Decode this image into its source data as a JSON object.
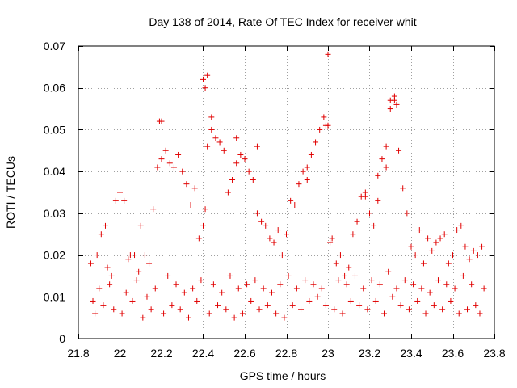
{
  "chart_data": {
    "type": "scatter",
    "title": "Day 138 of 2014, Rate Of TEC Index for receiver whit",
    "xlabel": "GPS time / hours",
    "ylabel": "ROTI / TECUs",
    "xlim": [
      21.8,
      23.8
    ],
    "ylim": [
      0,
      0.07
    ],
    "xticks": [
      21.8,
      22,
      22.2,
      22.4,
      22.6,
      22.8,
      23,
      23.2,
      23.4,
      23.6,
      23.8
    ],
    "xtick_labels": [
      "21.8",
      "22",
      "22.2",
      "22.4",
      "22.6",
      "22.8",
      "23",
      "23.2",
      "23.4",
      "23.6",
      "23.8"
    ],
    "yticks": [
      0,
      0.01,
      0.02,
      0.03,
      0.04,
      0.05,
      0.06,
      0.07
    ],
    "ytick_labels": [
      "0",
      "0.01",
      "0.02",
      "0.03",
      "0.04",
      "0.05",
      "0.06",
      "0.07"
    ],
    "grid": true,
    "marker": "+",
    "marker_color": "#e00000",
    "series": [
      {
        "name": "ROTI",
        "x": [
          21.87,
          21.89,
          21.91,
          21.93,
          21.96,
          21.98,
          22.0,
          22.02,
          22.05,
          22.07,
          22.1,
          22.12,
          22.14,
          22.16,
          22.18,
          22.2,
          22.22,
          22.24,
          22.26,
          22.28,
          22.3,
          22.32,
          22.34,
          22.36,
          22.38,
          22.4,
          22.41,
          22.42,
          22.44,
          22.46,
          22.48,
          22.5,
          22.52,
          22.54,
          22.56,
          22.58,
          22.6,
          22.62,
          22.64,
          22.66,
          22.68,
          22.7,
          22.72,
          22.74,
          22.76,
          22.78,
          22.8,
          22.82,
          22.84,
          22.86,
          22.88,
          22.9,
          22.92,
          22.94,
          22.96,
          22.98,
          23.0,
          23.01,
          23.02,
          23.04,
          23.06,
          23.08,
          23.1,
          23.12,
          23.14,
          23.16,
          23.18,
          23.2,
          23.22,
          23.24,
          23.26,
          23.28,
          23.3,
          23.32,
          23.34,
          23.36,
          23.38,
          23.4,
          23.42,
          23.44,
          23.46,
          23.48,
          23.5,
          23.52,
          23.54,
          23.56,
          23.58,
          23.6,
          23.62,
          23.64,
          23.66,
          23.68,
          23.7,
          23.72,
          23.74,
          21.88,
          21.92,
          21.97,
          22.01,
          22.06,
          22.11,
          22.15,
          22.21,
          22.25,
          22.29,
          22.33,
          22.37,
          22.43,
          22.47,
          22.51,
          22.55,
          22.59,
          22.63,
          22.67,
          22.71,
          22.75,
          22.79,
          22.83,
          22.87,
          22.91,
          22.95,
          22.99,
          23.03,
          23.07,
          23.11,
          23.15,
          23.19,
          23.23,
          23.27,
          23.31,
          23.35,
          23.39,
          23.43,
          23.47,
          23.51,
          23.55,
          23.59,
          23.63,
          23.67,
          23.71,
          23.73,
          21.9,
          21.95,
          22.03,
          22.08,
          22.13,
          22.17,
          22.23,
          22.27,
          22.31,
          22.35,
          22.39,
          22.45,
          22.49,
          22.53,
          22.57,
          22.61,
          22.65,
          22.69,
          22.73,
          22.77,
          22.81,
          22.85,
          22.89,
          22.93,
          22.97,
          23.05,
          23.09,
          23.13,
          23.17,
          23.21,
          23.25,
          23.29,
          23.33,
          23.37,
          23.41,
          23.45,
          23.49,
          23.53,
          23.57,
          23.61,
          23.65,
          23.69,
          23.75,
          21.86,
          21.94,
          22.04,
          22.09,
          22.19,
          22.42,
          22.41,
          22.44,
          22.99,
          23.0,
          23.3,
          23.32,
          23.33,
          22.2,
          22.4,
          22.56,
          22.66,
          22.9,
          23.18,
          23.24,
          23.28
        ],
        "y": [
          0.009,
          0.02,
          0.025,
          0.027,
          0.015,
          0.033,
          0.035,
          0.033,
          0.02,
          0.02,
          0.027,
          0.02,
          0.018,
          0.031,
          0.041,
          0.043,
          0.045,
          0.042,
          0.041,
          0.044,
          0.04,
          0.037,
          0.032,
          0.036,
          0.024,
          0.027,
          0.031,
          0.046,
          0.05,
          0.048,
          0.047,
          0.045,
          0.035,
          0.038,
          0.042,
          0.044,
          0.043,
          0.04,
          0.038,
          0.03,
          0.028,
          0.027,
          0.024,
          0.023,
          0.026,
          0.02,
          0.025,
          0.033,
          0.032,
          0.037,
          0.04,
          0.038,
          0.044,
          0.047,
          0.05,
          0.053,
          0.051,
          0.023,
          0.024,
          0.018,
          0.02,
          0.015,
          0.017,
          0.025,
          0.028,
          0.034,
          0.035,
          0.03,
          0.027,
          0.039,
          0.043,
          0.041,
          0.055,
          0.057,
          0.045,
          0.036,
          0.03,
          0.022,
          0.02,
          0.026,
          0.018,
          0.024,
          0.021,
          0.023,
          0.024,
          0.025,
          0.018,
          0.02,
          0.026,
          0.027,
          0.022,
          0.019,
          0.021,
          0.02,
          0.022,
          0.006,
          0.008,
          0.007,
          0.006,
          0.009,
          0.005,
          0.007,
          0.006,
          0.008,
          0.007,
          0.005,
          0.009,
          0.006,
          0.008,
          0.007,
          0.005,
          0.006,
          0.009,
          0.007,
          0.008,
          0.006,
          0.005,
          0.008,
          0.007,
          0.009,
          0.01,
          0.008,
          0.007,
          0.006,
          0.009,
          0.008,
          0.007,
          0.009,
          0.006,
          0.01,
          0.008,
          0.007,
          0.009,
          0.006,
          0.008,
          0.007,
          0.009,
          0.006,
          0.007,
          0.008,
          0.006,
          0.012,
          0.013,
          0.011,
          0.014,
          0.01,
          0.012,
          0.015,
          0.013,
          0.011,
          0.012,
          0.014,
          0.013,
          0.011,
          0.015,
          0.012,
          0.013,
          0.014,
          0.012,
          0.011,
          0.013,
          0.015,
          0.012,
          0.014,
          0.013,
          0.012,
          0.014,
          0.013,
          0.015,
          0.012,
          0.014,
          0.013,
          0.016,
          0.012,
          0.014,
          0.013,
          0.012,
          0.011,
          0.014,
          0.013,
          0.012,
          0.015,
          0.013,
          0.012,
          0.018,
          0.017,
          0.019,
          0.016,
          0.052,
          0.063,
          0.06,
          0.053,
          0.051,
          0.068,
          0.057,
          0.058,
          0.056,
          0.052,
          0.062,
          0.048,
          0.046,
          0.041,
          0.034,
          0.033,
          0.046
        ]
      }
    ]
  }
}
